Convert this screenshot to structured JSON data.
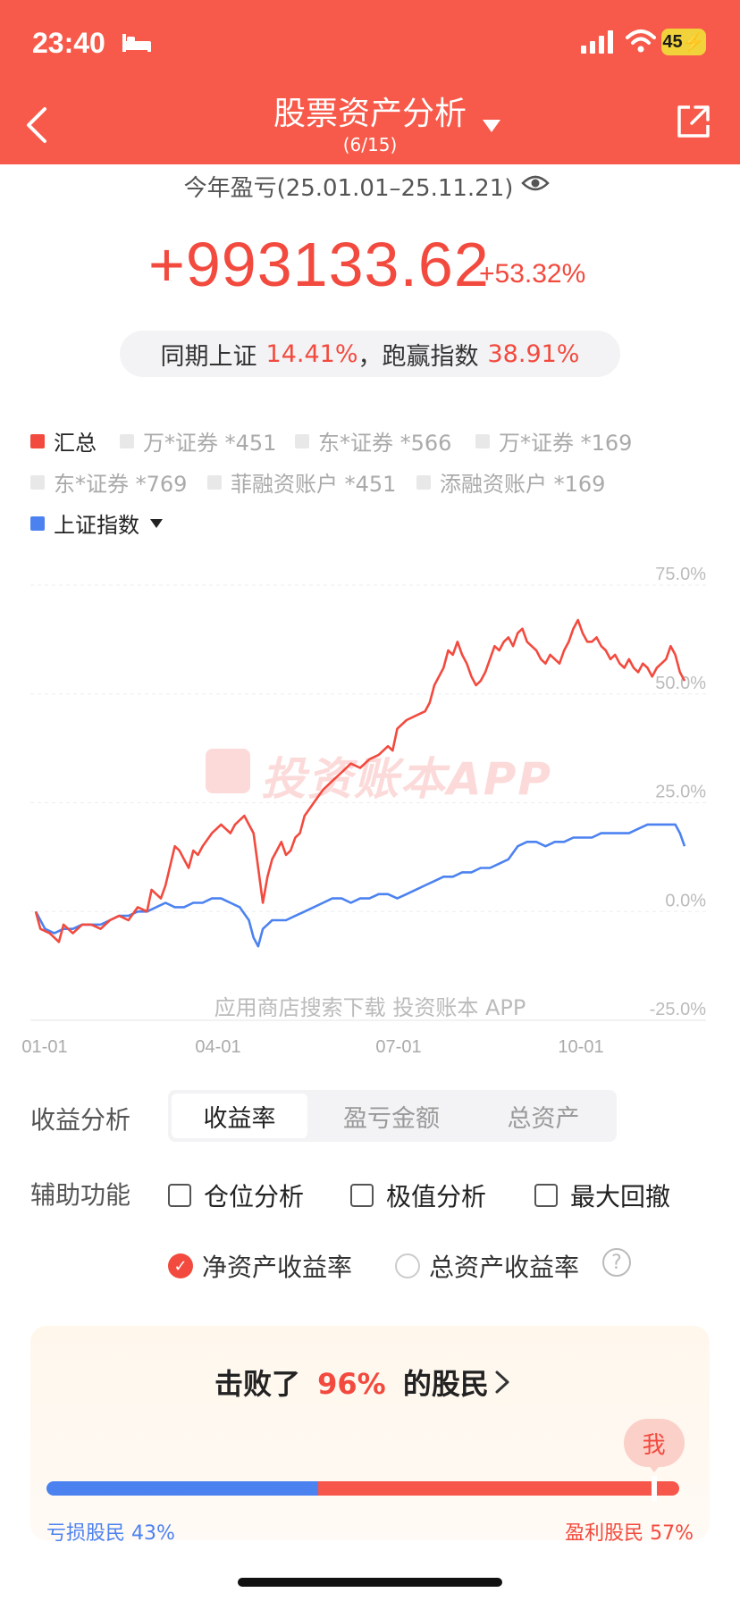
{
  "status_bar": {
    "time": "23:40",
    "battery": "45"
  },
  "nav": {
    "title": "股票资产分析",
    "subtitle": "(6/15)"
  },
  "summary": {
    "period": "今年盈亏(25.01.01–25.11.21)",
    "profit": "+993133.62",
    "profit_pct": "+53.32%",
    "bench_label": "同期上证",
    "bench_value": "14.41%",
    "beat_label": "，跑赢指数",
    "beat_value": "38.91%"
  },
  "legend": [
    {
      "label": "汇总",
      "color": "#f24a3e",
      "active": true
    },
    {
      "label": "万*证券 *451",
      "active": false
    },
    {
      "label": "东*证券 *566",
      "active": false
    },
    {
      "label": "万*证券 *169",
      "active": false
    },
    {
      "label": "东*证券 *769",
      "active": false
    },
    {
      "label": "菲融资账户 *451",
      "active": false
    },
    {
      "label": "添融资账户 *169",
      "active": false
    },
    {
      "label": "上证指数",
      "color": "#4c82f0",
      "active": true
    }
  ],
  "chart_data": {
    "type": "line",
    "y_ticks": [
      "75.0%",
      "50.0%",
      "25.0%",
      "0.0%",
      "-25.0%"
    ],
    "ylim": [
      -25,
      75
    ],
    "x_ticks": [
      "01-01",
      "04-01",
      "07-01",
      "10-01"
    ],
    "watermark": "投资账本APP",
    "grid": true,
    "series": [
      {
        "name": "汇总",
        "color": "#f24a3e",
        "points": [
          [
            0,
            0
          ],
          [
            1,
            -4
          ],
          [
            3,
            -5
          ],
          [
            5,
            -7
          ],
          [
            6,
            -3
          ],
          [
            8,
            -5
          ],
          [
            10,
            -3
          ],
          [
            12,
            -3
          ],
          [
            14,
            -4
          ],
          [
            16,
            -2
          ],
          [
            18,
            -1
          ],
          [
            20,
            -2
          ],
          [
            22,
            1
          ],
          [
            24,
            0
          ],
          [
            25,
            5
          ],
          [
            27,
            3
          ],
          [
            28,
            6
          ],
          [
            30,
            15
          ],
          [
            31,
            14
          ],
          [
            32,
            12
          ],
          [
            33,
            10
          ],
          [
            34,
            14
          ],
          [
            35,
            13
          ],
          [
            36,
            15
          ],
          [
            38,
            18
          ],
          [
            40,
            20
          ],
          [
            42,
            18
          ],
          [
            43,
            20
          ],
          [
            45,
            22
          ],
          [
            46,
            20
          ],
          [
            47,
            18
          ],
          [
            48,
            10
          ],
          [
            49,
            2
          ],
          [
            50,
            8
          ],
          [
            51,
            12
          ],
          [
            52,
            14
          ],
          [
            53,
            16
          ],
          [
            54,
            13
          ],
          [
            55,
            14
          ],
          [
            56,
            17
          ],
          [
            57,
            18
          ],
          [
            58,
            22
          ],
          [
            60,
            25
          ],
          [
            62,
            28
          ],
          [
            64,
            30
          ],
          [
            66,
            32
          ],
          [
            68,
            34
          ],
          [
            70,
            33
          ],
          [
            72,
            35
          ],
          [
            74,
            36
          ],
          [
            76,
            38
          ],
          [
            77,
            37
          ],
          [
            78,
            42
          ],
          [
            80,
            44
          ],
          [
            82,
            45
          ],
          [
            84,
            46
          ],
          [
            85,
            48
          ],
          [
            86,
            52
          ],
          [
            88,
            56
          ],
          [
            89,
            60
          ],
          [
            90,
            59
          ],
          [
            91,
            62
          ],
          [
            92,
            59
          ],
          [
            93,
            57
          ],
          [
            94,
            54
          ],
          [
            95,
            52
          ],
          [
            96,
            53
          ],
          [
            97,
            55
          ],
          [
            98,
            58
          ],
          [
            99,
            61
          ],
          [
            100,
            60
          ],
          [
            101,
            62
          ],
          [
            102,
            63
          ],
          [
            103,
            61
          ],
          [
            104,
            64
          ],
          [
            105,
            65
          ],
          [
            106,
            62
          ],
          [
            107,
            61
          ],
          [
            108,
            60
          ],
          [
            109,
            58
          ],
          [
            110,
            57
          ],
          [
            111,
            59
          ],
          [
            112,
            58
          ],
          [
            113,
            57
          ],
          [
            114,
            60
          ],
          [
            115,
            62
          ],
          [
            116,
            65
          ],
          [
            117,
            67
          ],
          [
            118,
            64
          ],
          [
            119,
            62
          ],
          [
            120,
            62
          ],
          [
            121,
            63
          ],
          [
            122,
            61
          ],
          [
            123,
            60
          ],
          [
            124,
            58
          ],
          [
            125,
            59
          ],
          [
            126,
            57
          ],
          [
            127,
            56
          ],
          [
            128,
            58
          ],
          [
            129,
            56
          ],
          [
            130,
            55
          ],
          [
            131,
            57
          ],
          [
            132,
            56
          ],
          [
            133,
            54
          ],
          [
            134,
            56
          ],
          [
            135,
            57
          ],
          [
            136,
            58
          ],
          [
            137,
            61
          ],
          [
            138,
            59
          ],
          [
            139,
            55
          ],
          [
            140,
            53
          ]
        ]
      },
      {
        "name": "上证指数",
        "color": "#4c82f0",
        "points": [
          [
            0,
            0
          ],
          [
            2,
            -4
          ],
          [
            4,
            -5
          ],
          [
            6,
            -4
          ],
          [
            8,
            -4
          ],
          [
            10,
            -3
          ],
          [
            12,
            -3
          ],
          [
            14,
            -3
          ],
          [
            16,
            -2
          ],
          [
            18,
            -1
          ],
          [
            20,
            -1
          ],
          [
            22,
            0
          ],
          [
            24,
            0
          ],
          [
            26,
            1
          ],
          [
            28,
            2
          ],
          [
            30,
            1
          ],
          [
            32,
            1
          ],
          [
            34,
            2
          ],
          [
            36,
            2
          ],
          [
            38,
            3
          ],
          [
            40,
            3
          ],
          [
            42,
            2
          ],
          [
            44,
            1
          ],
          [
            46,
            -2
          ],
          [
            47,
            -6
          ],
          [
            48,
            -8
          ],
          [
            49,
            -4
          ],
          [
            50,
            -3
          ],
          [
            51,
            -2
          ],
          [
            52,
            -2
          ],
          [
            54,
            -2
          ],
          [
            56,
            -1
          ],
          [
            58,
            0
          ],
          [
            60,
            1
          ],
          [
            62,
            2
          ],
          [
            64,
            3
          ],
          [
            66,
            3
          ],
          [
            68,
            2
          ],
          [
            70,
            3
          ],
          [
            72,
            3
          ],
          [
            74,
            4
          ],
          [
            76,
            4
          ],
          [
            78,
            3
          ],
          [
            80,
            4
          ],
          [
            82,
            5
          ],
          [
            84,
            6
          ],
          [
            86,
            7
          ],
          [
            88,
            8
          ],
          [
            90,
            8
          ],
          [
            92,
            9
          ],
          [
            94,
            9
          ],
          [
            96,
            10
          ],
          [
            98,
            10
          ],
          [
            100,
            11
          ],
          [
            102,
            12
          ],
          [
            104,
            15
          ],
          [
            106,
            16
          ],
          [
            108,
            16
          ],
          [
            110,
            15
          ],
          [
            112,
            16
          ],
          [
            114,
            16
          ],
          [
            116,
            17
          ],
          [
            118,
            17
          ],
          [
            120,
            17
          ],
          [
            122,
            18
          ],
          [
            124,
            18
          ],
          [
            126,
            18
          ],
          [
            128,
            18
          ],
          [
            130,
            19
          ],
          [
            132,
            20
          ],
          [
            134,
            20
          ],
          [
            136,
            20
          ],
          [
            138,
            20
          ],
          [
            139,
            18
          ],
          [
            140,
            15
          ]
        ]
      }
    ]
  },
  "chart_hint": "应用商店搜索下载 投资账本 APP",
  "analysis": {
    "label": "收益分析",
    "tabs": [
      "收益率",
      "盈亏金额",
      "总资产"
    ],
    "selected": "收益率"
  },
  "aux": {
    "label": "辅助功能",
    "options": [
      "仓位分析",
      "极值分析",
      "最大回撤"
    ]
  },
  "rate_type": {
    "options": [
      "净资产收益率",
      "总资产收益率"
    ],
    "selected": "净资产收益率",
    "help": "?"
  },
  "beat": {
    "prefix": "击败了",
    "value": "96%",
    "suffix": "的股民",
    "me_label": "我",
    "loss_label": "亏损股民",
    "loss_pct": "43%",
    "gain_label": "盈利股民",
    "gain_pct": "57%",
    "loss_fraction": 0.43,
    "me_fraction": 0.96
  }
}
